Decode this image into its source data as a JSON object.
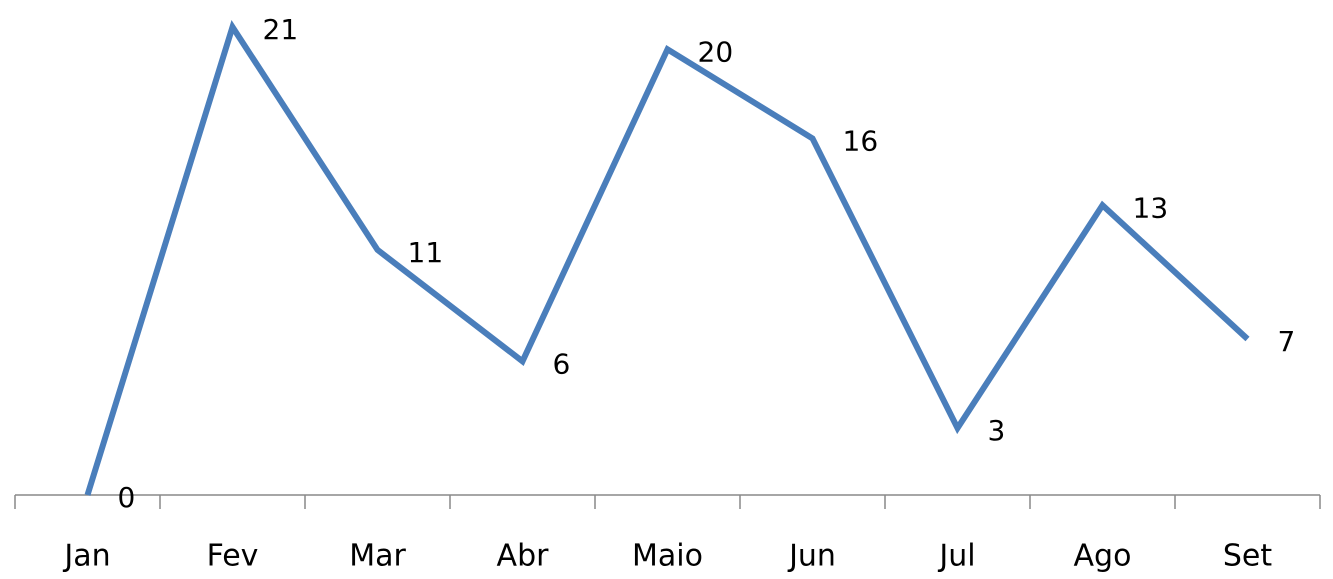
{
  "chart_data": {
    "type": "line",
    "categories": [
      "Jan",
      "Fev",
      "Mar",
      "Abr",
      "Maio",
      "Jun",
      "Jul",
      "Ago",
      "Set"
    ],
    "series": [
      {
        "name": null,
        "color": "#4a7ebb",
        "values": [
          0,
          21,
          11,
          6,
          20,
          16,
          3,
          13,
          7
        ]
      }
    ],
    "ylim": [
      0,
      21
    ]
  }
}
